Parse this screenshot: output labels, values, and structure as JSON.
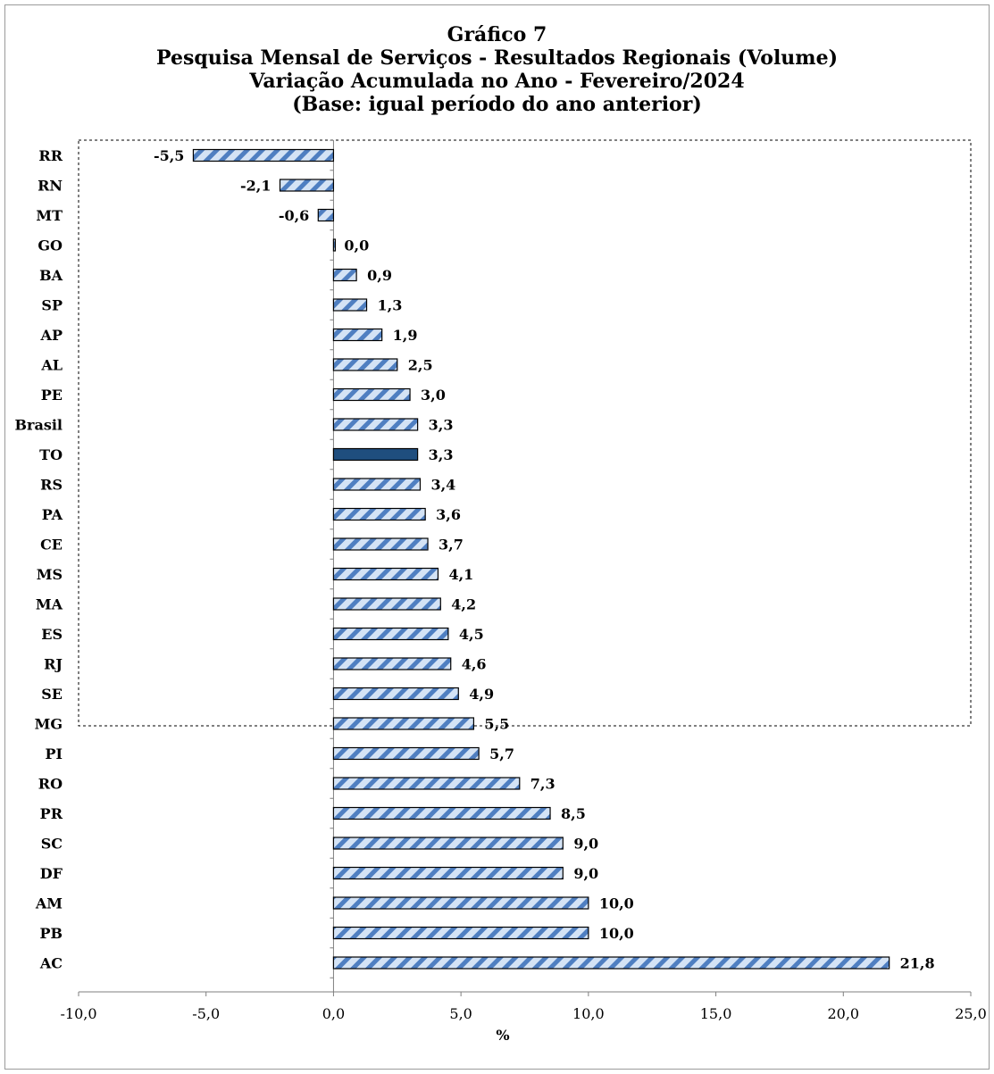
{
  "chart_data": {
    "type": "bar",
    "orientation": "horizontal",
    "title_lines": [
      "Gráfico 7",
      "Pesquisa  Mensal de Serviços - Resultados Regionais (Volume)",
      "Variação Acumulada no Ano - Fevereiro/2024",
      "(Base: igual período do ano anterior)"
    ],
    "xlabel": "%",
    "ylabel": "",
    "xlim": [
      -10,
      25
    ],
    "xticks": [
      -10,
      -5,
      0,
      5,
      10,
      15,
      20,
      25
    ],
    "xtick_labels": [
      "-10,0",
      "-5,0",
      "0,0",
      "5,0",
      "10,0",
      "15,0",
      "20,0",
      "25,0"
    ],
    "grid": false,
    "legend": "none",
    "highlight_category": "TO",
    "colors": {
      "fill_light": "#d4e3f5",
      "stripe": "#4f7fc1",
      "highlight": "#1f4e7e",
      "outline": "#000000"
    },
    "categories": [
      "RR",
      "RN",
      "MT",
      "GO",
      "BA",
      "SP",
      "AP",
      "AL",
      "PE",
      "Brasil",
      "TO",
      "RS",
      "PA",
      "CE",
      "MS",
      "MA",
      "ES",
      "RJ",
      "SE",
      "MG",
      "PI",
      "RO",
      "PR",
      "SC",
      "DF",
      "AM",
      "PB",
      "AC"
    ],
    "values": [
      -5.5,
      -2.1,
      -0.6,
      0.0,
      0.9,
      1.3,
      1.9,
      2.5,
      3.0,
      3.3,
      3.3,
      3.4,
      3.6,
      3.7,
      4.1,
      4.2,
      4.5,
      4.6,
      4.9,
      5.5,
      5.7,
      7.3,
      8.5,
      9.0,
      9.0,
      10.0,
      10.0,
      21.8
    ],
    "value_labels": [
      "-5,5",
      "-2,1",
      "-0,6",
      "0,0",
      "0,9",
      "1,3",
      "1,9",
      "2,5",
      "3,0",
      "3,3",
      "3,3",
      "3,4",
      "3,6",
      "3,7",
      "4,1",
      "4,2",
      "4,5",
      "4,6",
      "4,9",
      "5,5",
      "5,7",
      "7,3",
      "8,5",
      "9,0",
      "9,0",
      "10,0",
      "10,0",
      "21,8"
    ]
  }
}
